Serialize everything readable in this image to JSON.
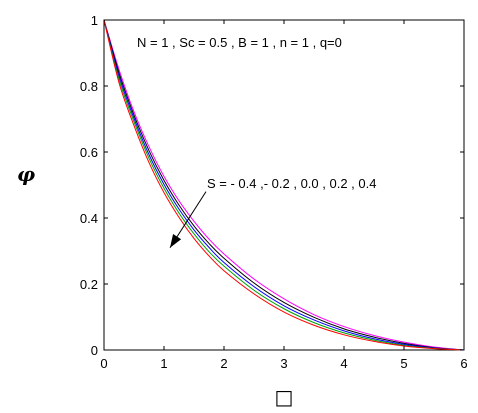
{
  "chart_data": {
    "type": "line",
    "ylabel": "φ",
    "xlabel": "□",
    "xlim": [
      0,
      6
    ],
    "ylim": [
      0,
      1
    ],
    "xticks": [
      0,
      1,
      2,
      3,
      4,
      5,
      6
    ],
    "yticks": [
      0,
      0.2,
      0.4,
      0.6,
      0.8,
      1
    ],
    "xtick_labels": [
      "0",
      "1",
      "2",
      "3",
      "4",
      "5",
      "6"
    ],
    "ytick_labels": [
      "0",
      "0.2",
      "0.4",
      "0.6",
      "0.8",
      "1"
    ],
    "grid": false,
    "annotations": {
      "parameters": "N = 1 , Sc = 0.5 , B = 1 , n = 1 , q=0",
      "series_label": "S = - 0.4 ,- 0.2 , 0.0 , 0.2 , 0.4"
    },
    "arrow": {
      "from": [
        1.7,
        0.48
      ],
      "to": [
        1.1,
        0.31
      ]
    },
    "x": [
      0,
      0.25,
      0.5,
      0.75,
      1,
      1.25,
      1.5,
      1.75,
      2,
      2.5,
      3,
      3.5,
      4,
      4.5,
      5,
      5.5,
      6
    ],
    "series": [
      {
        "color": "#ff00ff",
        "values": [
          1,
          0.85,
          0.722,
          0.616,
          0.526,
          0.452,
          0.39,
          0.336,
          0.291,
          0.215,
          0.155,
          0.107,
          0.071,
          0.044,
          0.024,
          0.009,
          0
        ]
      },
      {
        "color": "#000000",
        "values": [
          1,
          0.84,
          0.712,
          0.604,
          0.514,
          0.439,
          0.376,
          0.323,
          0.278,
          0.203,
          0.144,
          0.099,
          0.064,
          0.039,
          0.02,
          0.007,
          0
        ]
      },
      {
        "color": "#0000ff",
        "values": [
          1,
          0.83,
          0.702,
          0.592,
          0.502,
          0.427,
          0.364,
          0.311,
          0.265,
          0.192,
          0.134,
          0.091,
          0.058,
          0.034,
          0.017,
          0.006,
          0
        ]
      },
      {
        "color": "#00a000",
        "values": [
          1,
          0.82,
          0.692,
          0.581,
          0.49,
          0.415,
          0.352,
          0.298,
          0.254,
          0.181,
          0.125,
          0.083,
          0.052,
          0.03,
          0.014,
          0.005,
          0
        ]
      },
      {
        "color": "#ff0000",
        "values": [
          1,
          0.81,
          0.68,
          0.568,
          0.477,
          0.402,
          0.338,
          0.285,
          0.24,
          0.17,
          0.115,
          0.075,
          0.046,
          0.026,
          0.012,
          0.004,
          0
        ]
      }
    ]
  }
}
